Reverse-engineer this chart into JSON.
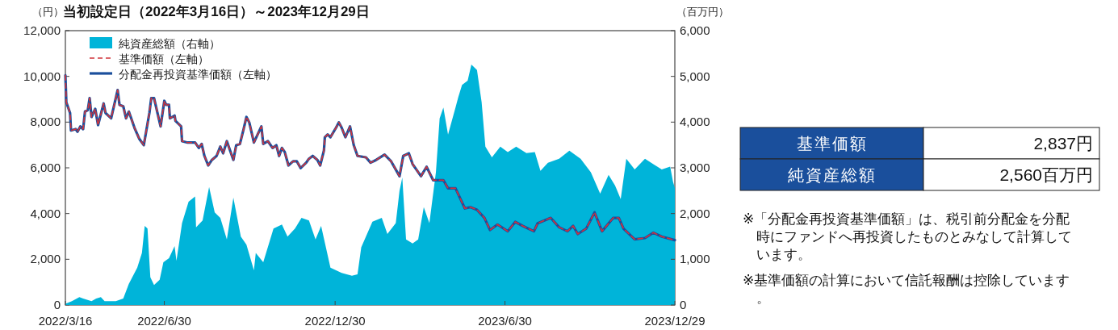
{
  "chart_data": [
    {
      "type": "line",
      "title": "当初設定日（2022年3月16日）～2023年12月29日",
      "ylabel": "（円）",
      "y2label": "（百万円）",
      "xlim": [
        "2022-03-16",
        "2023-12-29"
      ],
      "xticks": [
        {
          "value": "2022-03-16",
          "label": "2022/3/16"
        },
        {
          "value": "2022-06-30",
          "label": "2022/6/30"
        },
        {
          "value": "2022-12-30",
          "label": "2022/12/30"
        },
        {
          "value": "2023-06-30",
          "label": "2023/6/30"
        },
        {
          "value": "2023-12-29",
          "label": "2023/12/29"
        }
      ],
      "ylim": [
        0,
        12000
      ],
      "yticks": [
        0,
        {
          "value": 2000,
          "label": "2,000"
        },
        {
          "value": 4000,
          "label": "4,000"
        },
        {
          "value": 6000,
          "label": "6,000"
        },
        {
          "value": 8000,
          "label": "8,000"
        },
        {
          "value": 10000,
          "label": "10,000"
        },
        {
          "value": 12000,
          "label": "12,000"
        }
      ],
      "y2lim": [
        0,
        6000
      ],
      "y2ticks": [
        0,
        {
          "value": 1000,
          "label": "1,000"
        },
        {
          "value": 2000,
          "label": "2,000"
        },
        {
          "value": 3000,
          "label": "3,000"
        },
        {
          "value": 4000,
          "label": "4,000"
        },
        {
          "value": 5000,
          "label": "5,000"
        },
        {
          "value": 6000,
          "label": "6,000"
        }
      ],
      "grid": false,
      "legend": "top left",
      "series": [
        {
          "name": "純資産総額（右軸）",
          "type": "area",
          "axis": "y2",
          "color": "#00b4d9",
          "x": [
            "2022-03-16",
            "2022-03-23",
            "2022-03-31",
            "2022-04-04",
            "2022-04-13",
            "2022-04-18",
            "2022-04-23",
            "2022-04-27",
            "2022-05-09",
            "2022-05-17",
            "2022-05-23",
            "2022-06-01",
            "2022-06-06",
            "2022-06-09",
            "2022-06-12",
            "2022-06-15",
            "2022-06-19",
            "2022-06-25",
            "2022-06-29",
            "2022-07-05",
            "2022-07-11",
            "2022-07-13",
            "2022-07-19",
            "2022-07-26",
            "2022-08-02",
            "2022-08-03",
            "2022-08-10",
            "2022-08-17",
            "2022-08-23",
            "2022-08-29",
            "2022-09-05",
            "2022-09-12",
            "2022-09-20",
            "2022-09-26",
            "2022-10-04",
            "2022-10-06",
            "2022-10-14",
            "2022-10-25",
            "2022-11-03",
            "2022-11-09",
            "2022-11-17",
            "2022-11-24",
            "2022-12-02",
            "2022-12-09",
            "2022-12-15",
            "2022-12-25",
            "2023-01-06",
            "2023-01-17",
            "2023-01-23",
            "2023-01-27",
            "2023-02-01",
            "2023-02-08",
            "2023-02-18",
            "2023-02-24",
            "2023-03-05",
            "2023-03-09",
            "2023-03-12",
            "2023-03-16",
            "2023-03-23",
            "2023-03-29",
            "2023-04-04",
            "2023-04-10",
            "2023-04-17",
            "2023-04-21",
            "2023-04-25",
            "2023-04-30",
            "2023-05-08",
            "2023-05-11",
            "2023-05-15",
            "2023-05-21",
            "2023-05-25",
            "2023-05-31",
            "2023-06-05",
            "2023-06-09",
            "2023-06-16",
            "2023-06-25",
            "2023-07-03",
            "2023-07-12",
            "2023-07-23",
            "2023-08-01",
            "2023-08-07",
            "2023-08-15",
            "2023-08-27",
            "2023-09-07",
            "2023-09-19",
            "2023-09-30",
            "2023-10-10",
            "2023-10-19",
            "2023-10-26",
            "2023-11-01",
            "2023-11-07",
            "2023-11-16",
            "2023-11-27",
            "2023-12-06",
            "2023-12-15",
            "2023-12-24",
            "2023-12-27",
            "2023-12-29"
          ],
          "values": [
            25,
            85,
            170,
            140,
            85,
            140,
            170,
            85,
            85,
            140,
            465,
            815,
            1140,
            1730,
            1670,
            610,
            435,
            550,
            935,
            1025,
            1290,
            965,
            1790,
            2260,
            2375,
            1700,
            1850,
            2580,
            2025,
            1905,
            1435,
            2345,
            1495,
            1320,
            760,
            1140,
            935,
            1670,
            1760,
            1495,
            1670,
            1905,
            1850,
            1435,
            1730,
            815,
            700,
            640,
            670,
            1260,
            1495,
            1820,
            1905,
            1555,
            1790,
            2495,
            2790,
            1435,
            1345,
            1435,
            2140,
            1790,
            2905,
            4080,
            4320,
            3730,
            4320,
            4550,
            4815,
            4905,
            5260,
            5140,
            4435,
            3465,
            3230,
            3465,
            3345,
            3465,
            3320,
            3345,
            2935,
            3110,
            3200,
            3375,
            3200,
            2905,
            2435,
            2845,
            2610,
            2315,
            3200,
            2965,
            3200,
            3080,
            2965,
            3025,
            2700,
            2560
          ]
        },
        {
          "name": "基準価額（左軸）",
          "type": "line",
          "color": "#d1343b",
          "line_style": "dashed",
          "x": [
            "2022-03-16",
            "2022-03-17",
            "2022-03-21",
            "2022-03-22",
            "2022-03-27",
            "2022-03-29",
            "2022-04-01",
            "2022-04-04",
            "2022-04-06",
            "2022-04-09",
            "2022-04-11",
            "2022-04-13",
            "2022-04-17",
            "2022-04-20",
            "2022-04-26",
            "2022-04-28",
            "2022-05-04",
            "2022-05-08",
            "2022-05-11",
            "2022-05-13",
            "2022-05-17",
            "2022-05-20",
            "2022-05-23",
            "2022-05-29",
            "2022-06-03",
            "2022-06-08",
            "2022-06-14",
            "2022-06-16",
            "2022-06-19",
            "2022-06-22",
            "2022-06-26",
            "2022-06-30",
            "2022-07-02",
            "2022-07-05",
            "2022-07-06",
            "2022-07-11",
            "2022-07-12",
            "2022-07-18",
            "2022-07-19",
            "2022-07-25",
            "2022-08-02",
            "2022-08-06",
            "2022-08-09",
            "2022-08-12",
            "2022-08-16",
            "2022-08-20",
            "2022-08-25",
            "2022-08-29",
            "2022-09-01",
            "2022-09-05",
            "2022-09-08",
            "2022-09-12",
            "2022-09-15",
            "2022-09-19",
            "2022-09-23",
            "2022-09-26",
            "2022-09-29",
            "2022-10-04",
            "2022-10-08",
            "2022-10-12",
            "2022-10-14",
            "2022-10-19",
            "2022-10-24",
            "2022-10-28",
            "2022-10-31",
            "2022-11-03",
            "2022-11-06",
            "2022-11-10",
            "2022-11-15",
            "2022-11-19",
            "2022-11-23",
            "2022-11-29",
            "2022-12-02",
            "2022-12-06",
            "2022-12-11",
            "2022-12-14",
            "2022-12-18",
            "2022-12-19",
            "2022-12-22",
            "2022-12-25",
            "2022-12-31",
            "2023-01-03",
            "2023-01-06",
            "2023-01-10",
            "2023-01-15",
            "2023-01-19",
            "2023-01-23",
            "2023-02-01",
            "2023-02-06",
            "2023-02-12",
            "2023-02-21",
            "2023-02-28",
            "2023-03-09",
            "2023-03-13",
            "2023-03-19",
            "2023-03-23",
            "2023-04-01",
            "2023-04-07",
            "2023-04-14",
            "2023-04-25",
            "2023-04-30",
            "2023-05-08",
            "2023-05-18",
            "2023-05-24",
            "2023-05-31",
            "2023-06-08",
            "2023-06-14",
            "2023-06-22",
            "2023-07-03",
            "2023-07-11",
            "2023-07-19",
            "2023-07-31",
            "2023-08-04",
            "2023-08-18",
            "2023-08-27",
            "2023-09-05",
            "2023-09-11",
            "2023-09-16",
            "2023-09-25",
            "2023-10-04",
            "2023-10-12",
            "2023-10-24",
            "2023-10-30",
            "2023-11-04",
            "2023-11-16",
            "2023-11-27",
            "2023-12-06",
            "2023-12-15",
            "2023-12-29"
          ],
          "values": [
            10050,
            8870,
            8400,
            7635,
            7695,
            7580,
            7810,
            7695,
            8460,
            8520,
            9050,
            8225,
            8580,
            7870,
            8815,
            8400,
            8165,
            8870,
            9400,
            8755,
            8695,
            8165,
            8460,
            7755,
            7280,
            6990,
            8400,
            9050,
            9050,
            8520,
            7810,
            8930,
            8755,
            8755,
            8165,
            8285,
            8050,
            7810,
            7165,
            7105,
            7105,
            6870,
            7045,
            6520,
            6105,
            6345,
            6520,
            6930,
            6635,
            7165,
            6810,
            6345,
            6990,
            7045,
            7695,
            8225,
            7990,
            7105,
            7460,
            7810,
            7045,
            7165,
            6870,
            6990,
            6520,
            6870,
            6695,
            6105,
            6285,
            6285,
            5990,
            6225,
            6400,
            6520,
            6345,
            6105,
            6755,
            7340,
            7460,
            7340,
            7755,
            7990,
            7755,
            7340,
            7810,
            6990,
            6520,
            6460,
            6225,
            6345,
            6575,
            6285,
            5635,
            6520,
            6635,
            6165,
            5635,
            6045,
            5460,
            5460,
            5105,
            5105,
            4225,
            4280,
            4165,
            3810,
            3280,
            3520,
            3225,
            3635,
            3460,
            3225,
            3575,
            3810,
            3400,
            3225,
            3460,
            3105,
            3340,
            4050,
            3225,
            3810,
            3810,
            3340,
            2870,
            2930,
            3165,
            2990,
            2837
          ]
        },
        {
          "name": "分配金再投資基準価額（左軸）",
          "type": "line",
          "color": "#1b4f9c",
          "line_style": "solid",
          "x": [
            "2022-03-16",
            "2022-03-17",
            "2022-03-21",
            "2022-03-22",
            "2022-03-27",
            "2022-03-29",
            "2022-04-01",
            "2022-04-04",
            "2022-04-06",
            "2022-04-09",
            "2022-04-11",
            "2022-04-13",
            "2022-04-17",
            "2022-04-20",
            "2022-04-26",
            "2022-04-28",
            "2022-05-04",
            "2022-05-08",
            "2022-05-11",
            "2022-05-13",
            "2022-05-17",
            "2022-05-20",
            "2022-05-23",
            "2022-05-29",
            "2022-06-03",
            "2022-06-08",
            "2022-06-14",
            "2022-06-16",
            "2022-06-19",
            "2022-06-22",
            "2022-06-26",
            "2022-06-30",
            "2022-07-02",
            "2022-07-05",
            "2022-07-06",
            "2022-07-11",
            "2022-07-12",
            "2022-07-18",
            "2022-07-19",
            "2022-07-25",
            "2022-08-02",
            "2022-08-06",
            "2022-08-09",
            "2022-08-12",
            "2022-08-16",
            "2022-08-20",
            "2022-08-25",
            "2022-08-29",
            "2022-09-01",
            "2022-09-05",
            "2022-09-08",
            "2022-09-12",
            "2022-09-15",
            "2022-09-19",
            "2022-09-23",
            "2022-09-26",
            "2022-09-29",
            "2022-10-04",
            "2022-10-08",
            "2022-10-12",
            "2022-10-14",
            "2022-10-19",
            "2022-10-24",
            "2022-10-28",
            "2022-10-31",
            "2022-11-03",
            "2022-11-06",
            "2022-11-10",
            "2022-11-15",
            "2022-11-19",
            "2022-11-23",
            "2022-11-29",
            "2022-12-02",
            "2022-12-06",
            "2022-12-11",
            "2022-12-14",
            "2022-12-18",
            "2022-12-19",
            "2022-12-22",
            "2022-12-25",
            "2022-12-31",
            "2023-01-03",
            "2023-01-06",
            "2023-01-10",
            "2023-01-15",
            "2023-01-19",
            "2023-01-23",
            "2023-02-01",
            "2023-02-06",
            "2023-02-12",
            "2023-02-21",
            "2023-02-28",
            "2023-03-09",
            "2023-03-13",
            "2023-03-19",
            "2023-03-23",
            "2023-04-01",
            "2023-04-07",
            "2023-04-14",
            "2023-04-25",
            "2023-04-30",
            "2023-05-08",
            "2023-05-18",
            "2023-05-24",
            "2023-05-31",
            "2023-06-08",
            "2023-06-14",
            "2023-06-22",
            "2023-07-03",
            "2023-07-11",
            "2023-07-19",
            "2023-07-31",
            "2023-08-04",
            "2023-08-18",
            "2023-08-27",
            "2023-09-05",
            "2023-09-11",
            "2023-09-16",
            "2023-09-25",
            "2023-10-04",
            "2023-10-12",
            "2023-10-24",
            "2023-10-30",
            "2023-11-04",
            "2023-11-16",
            "2023-11-27",
            "2023-12-06",
            "2023-12-15",
            "2023-12-29"
          ],
          "values": [
            10050,
            8870,
            8400,
            7635,
            7695,
            7580,
            7810,
            7695,
            8460,
            8520,
            9050,
            8225,
            8580,
            7870,
            8815,
            8400,
            8165,
            8870,
            9400,
            8755,
            8695,
            8165,
            8460,
            7755,
            7280,
            6990,
            8400,
            9050,
            9050,
            8520,
            7810,
            8930,
            8755,
            8755,
            8165,
            8285,
            8050,
            7810,
            7165,
            7105,
            7105,
            6870,
            7045,
            6520,
            6105,
            6345,
            6520,
            6930,
            6635,
            7165,
            6810,
            6345,
            6990,
            7045,
            7695,
            8225,
            7990,
            7105,
            7460,
            7810,
            7045,
            7165,
            6870,
            6990,
            6520,
            6870,
            6695,
            6105,
            6285,
            6285,
            5990,
            6225,
            6400,
            6520,
            6345,
            6105,
            6755,
            7340,
            7460,
            7340,
            7755,
            7990,
            7755,
            7340,
            7810,
            6990,
            6520,
            6460,
            6225,
            6345,
            6575,
            6285,
            5635,
            6520,
            6635,
            6165,
            5635,
            6045,
            5460,
            5460,
            5105,
            5105,
            4225,
            4280,
            4165,
            3810,
            3280,
            3520,
            3225,
            3635,
            3460,
            3225,
            3575,
            3810,
            3400,
            3225,
            3460,
            3105,
            3340,
            4050,
            3225,
            3810,
            3810,
            3340,
            2870,
            2930,
            3165,
            2990,
            2837
          ]
        }
      ]
    },
    {
      "type": "other",
      "categories": [
        "基準価額",
        "純資産総額"
      ],
      "value_labels": [
        "2,837円",
        "2,560百万円"
      ],
      "colors": [
        "#1a4f9c",
        "#1a4f9c"
      ],
      "annotations": [
        "※「分配金再投資基準価額」は、税引前分配金を分配時にファンドへ再投資したものとみなして計算しています。",
        "※基準価額の計算において信託報酬は控除しています。"
      ]
    }
  ]
}
